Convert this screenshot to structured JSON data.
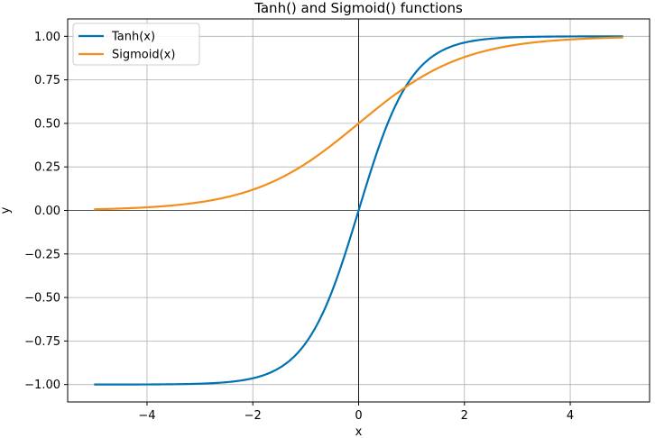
{
  "chart_data": {
    "type": "line",
    "title": "Tanh() and Sigmoid() functions",
    "xlabel": "x",
    "ylabel": "y",
    "xlim": [
      -5.5,
      5.5
    ],
    "ylim": [
      -1.1,
      1.1
    ],
    "x_ticks": [
      -4,
      -2,
      0,
      2,
      4
    ],
    "x_tick_labels": [
      "−4",
      "−2",
      "0",
      "2",
      "4"
    ],
    "y_ticks": [
      1.0,
      0.75,
      0.5,
      0.25,
      0.0,
      -0.25,
      -0.5,
      -0.75,
      -1.0
    ],
    "y_tick_labels": [
      "1.00",
      "0.75",
      "0.50",
      "0.25",
      "0.00",
      "−0.25",
      "−0.50",
      "−0.75",
      "−1.00"
    ],
    "grid": true,
    "legend_position": "top-left",
    "series": [
      {
        "name": "Tanh(x)",
        "color": "#0072b2",
        "x": [
          -5,
          -4.5,
          -4,
          -3.5,
          -3,
          -2.5,
          -2,
          -1.75,
          -1.5,
          -1.25,
          -1,
          -0.75,
          -0.5,
          -0.25,
          0,
          0.25,
          0.5,
          0.75,
          1,
          1.25,
          1.5,
          1.75,
          2,
          2.5,
          3,
          3.5,
          4,
          4.5,
          5
        ],
        "y": [
          -0.9999,
          -0.9998,
          -0.9993,
          -0.9982,
          -0.9951,
          -0.9866,
          -0.964,
          -0.9414,
          -0.9051,
          -0.8483,
          -0.7616,
          -0.6351,
          -0.4621,
          -0.2449,
          0.0,
          0.2449,
          0.4621,
          0.6351,
          0.7616,
          0.8483,
          0.9051,
          0.9414,
          0.964,
          0.9866,
          0.9951,
          0.9982,
          0.9993,
          0.9998,
          0.9999
        ]
      },
      {
        "name": "Sigmoid(x)",
        "color": "#f28e1c",
        "x": [
          -5,
          -4.5,
          -4,
          -3.5,
          -3,
          -2.5,
          -2,
          -1.75,
          -1.5,
          -1.25,
          -1,
          -0.75,
          -0.5,
          -0.25,
          0,
          0.25,
          0.5,
          0.75,
          1,
          1.25,
          1.5,
          1.75,
          2,
          2.5,
          3,
          3.5,
          4,
          4.5,
          5
        ],
        "y": [
          0.0067,
          0.011,
          0.018,
          0.0293,
          0.0474,
          0.0759,
          0.1192,
          0.148,
          0.1824,
          0.2227,
          0.2689,
          0.3208,
          0.3775,
          0.4378,
          0.5,
          0.5622,
          0.6225,
          0.6792,
          0.7311,
          0.7773,
          0.8176,
          0.852,
          0.8808,
          0.9241,
          0.9526,
          0.9707,
          0.982,
          0.989,
          0.9933
        ]
      }
    ]
  }
}
